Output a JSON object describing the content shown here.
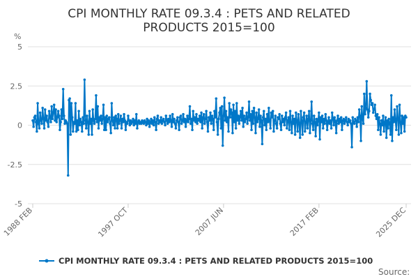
{
  "chart_data": {
    "type": "line",
    "title_lines": [
      "CPI MONTHLY RATE 09.3.4 : PETS AND RELATED",
      "PRODUCTS 2015=100"
    ],
    "ylabel": "%",
    "ylim": [
      -5,
      5
    ],
    "y_ticks": [
      "5",
      "2.5",
      "0",
      "-2.5",
      "-5"
    ],
    "y_tick_values": [
      5,
      2.5,
      0,
      -2.5,
      -5
    ],
    "x_start": "1988 FEB",
    "x_end": "2025 DEC",
    "x_frequency": "monthly",
    "x_ticks": [
      "1988 FEB",
      "1997 OCT",
      "2007 JUN",
      "2017 FEB",
      "2025 DEC"
    ],
    "x_tick_month_index": [
      0,
      116,
      232,
      348,
      454
    ],
    "grid": true,
    "legend_position": "bottom",
    "source_label": "Source:",
    "series": [
      {
        "name": "CPI MONTHLY RATE 09.3.4 : PETS AND RELATED PRODUCTS 2015=100",
        "color": "#0077c8",
        "values": [
          0.3,
          -0.1,
          0.5,
          0.6,
          0.2,
          -0.4,
          1.4,
          0.1,
          -0.2,
          0.8,
          0.3,
          0.1,
          1.1,
          0.4,
          -0.2,
          1.0,
          0.3,
          0.6,
          0.2,
          -0.1,
          0.9,
          0.5,
          0.2,
          1.2,
          0.4,
          0.8,
          1.3,
          0.3,
          1.0,
          0.2,
          0.5,
          0.9,
          0.6,
          -0.3,
          0.2,
          1.0,
          0.4,
          2.3,
          0.6,
          0.1,
          0.3,
          0.2,
          0.1,
          -3.2,
          1.6,
          1.7,
          -0.6,
          1.4,
          0.5,
          -0.4,
          0.2,
          0.1,
          1.4,
          -0.4,
          0.3,
          -0.3,
          0.9,
          0.0,
          0.4,
          0.2,
          -0.4,
          0.5,
          0.1,
          2.9,
          0.3,
          -0.2,
          0.6,
          0.2,
          -0.6,
          0.9,
          0.1,
          0.4,
          -0.6,
          1.0,
          0.3,
          0.1,
          0.4,
          1.9,
          0.2,
          1.2,
          -0.2,
          0.5,
          0.3,
          0.6,
          0.1,
          0.4,
          1.3,
          -0.3,
          0.5,
          -0.3,
          0.6,
          0.2,
          0.4,
          0.5,
          0.1,
          -0.5,
          1.4,
          0.3,
          0.0,
          0.5,
          -0.2,
          0.6,
          0.4,
          -0.2,
          0.7,
          0.1,
          0.3,
          0.6,
          -0.2,
          0.4,
          0.2,
          0.7,
          0.3,
          -0.3,
          0.2,
          0.1,
          0.6,
          0.3,
          0.0,
          0.3,
          0.1,
          0.2,
          0.4,
          0.0,
          0.3,
          0.1,
          0.7,
          -0.2,
          0.2,
          0.3,
          0.1,
          0.2,
          0.1,
          0.3,
          0.2,
          0.1,
          0.3,
          0.2,
          0.0,
          0.4,
          0.1,
          0.3,
          -0.1,
          0.2,
          0.4,
          0.1,
          0.3,
          0.0,
          0.5,
          0.2,
          -0.3,
          0.4,
          0.6,
          0.1,
          0.3,
          0.2,
          0.5,
          0.1,
          0.3,
          0.4,
          0.2,
          0.0,
          0.6,
          0.3,
          0.1,
          0.4,
          0.2,
          0.6,
          0.3,
          -0.1,
          0.7,
          0.2,
          0.4,
          0.1,
          -0.2,
          0.3,
          0.5,
          0.2,
          -0.3,
          0.5,
          0.6,
          0.1,
          0.3,
          0.7,
          0.2,
          0.4,
          -0.1,
          0.3,
          0.6,
          0.2,
          0.4,
          1.2,
          0.1,
          0.4,
          -0.3,
          0.9,
          0.3,
          0.5,
          0.2,
          0.7,
          0.1,
          0.4,
          0.3,
          0.6,
          0.2,
          0.8,
          -0.2,
          0.5,
          0.7,
          0.1,
          0.4,
          0.9,
          0.2,
          -0.4,
          0.5,
          0.3,
          0.8,
          0.1,
          0.6,
          0.4,
          -0.3,
          0.9,
          0.5,
          1.7,
          0.2,
          -0.6,
          0.4,
          0.8,
          1.1,
          -0.2,
          1.2,
          -1.3,
          0.6,
          1.75,
          0.3,
          0.9,
          0.2,
          0.5,
          -0.4,
          1.4,
          0.5,
          1.0,
          0.8,
          -0.5,
          1.3,
          0.2,
          0.9,
          -0.2,
          1.4,
          0.3,
          0.6,
          0.1,
          0.5,
          0.9,
          0.3,
          1.1,
          -0.1,
          0.6,
          0.2,
          0.4,
          0.8,
          0.1,
          0.5,
          1.5,
          0.3,
          0.7,
          -0.3,
          0.9,
          0.1,
          1.1,
          0.5,
          -0.5,
          0.8,
          0.2,
          0.4,
          1.0,
          -0.1,
          0.6,
          0.3,
          -1.2,
          0.5,
          0.9,
          0.0,
          0.4,
          -0.3,
          0.7,
          0.2,
          1.1,
          0.3,
          -0.2,
          0.8,
          0.5,
          0.9,
          -0.4,
          0.3,
          0.6,
          0.1,
          -0.2,
          0.5,
          0.4,
          0.7,
          0.1,
          -0.3,
          0.6,
          0.2,
          0.4,
          0.0,
          0.5,
          0.8,
          -0.2,
          0.3,
          0.5,
          -0.3,
          0.9,
          0.2,
          -0.5,
          0.6,
          0.1,
          0.4,
          -0.6,
          0.8,
          0.3,
          -0.4,
          0.7,
          0.1,
          -0.8,
          0.9,
          0.3,
          -0.6,
          0.5,
          0.8,
          -0.4,
          0.2,
          0.6,
          -0.2,
          0.4,
          0.9,
          -0.5,
          0.3,
          1.5,
          0.1,
          -0.3,
          0.6,
          0.2,
          -0.7,
          0.4,
          0.0,
          0.3,
          0.8,
          -0.9,
          0.5,
          0.2,
          0.6,
          -0.2,
          0.4,
          0.1,
          0.7,
          0.3,
          -0.3,
          0.2,
          0.5,
          0.1,
          0.3,
          -0.2,
          0.8,
          0.4,
          0.0,
          0.5,
          0.2,
          -0.5,
          0.3,
          0.6,
          0.1,
          0.4,
          0.2,
          0.5,
          -0.3,
          0.3,
          0.4,
          0.1,
          0.3,
          0.5,
          0.2,
          0.0,
          0.4,
          0.2,
          0.3,
          0.1,
          -1.4,
          0.5,
          0.2,
          0.1,
          0.4,
          0.3,
          -0.1,
          0.5,
          0.2,
          1.0,
          0.6,
          -1.0,
          1.2,
          0.4,
          0.1,
          2.0,
          0.7,
          1.1,
          2.8,
          1.0,
          0.5,
          0.9,
          2.0,
          1.6,
          1.3,
          1.4,
          0.8,
          1.0,
          1.3,
          0.6,
          0.4,
          0.7,
          -0.3,
          0.5,
          0.1,
          -0.6,
          0.3,
          0.0,
          0.6,
          -0.4,
          0.2,
          0.5,
          -0.8,
          0.3,
          -0.2,
          0.4,
          0.1,
          -0.6,
          1.9,
          -1.0,
          0.5,
          0.2,
          1.0,
          0.3,
          -0.3,
          1.2,
          0.4,
          -0.6,
          1.3,
          0.2,
          -0.5,
          0.6,
          0.1,
          0.5,
          -0.4,
          0.6,
          0.5
        ]
      }
    ]
  }
}
